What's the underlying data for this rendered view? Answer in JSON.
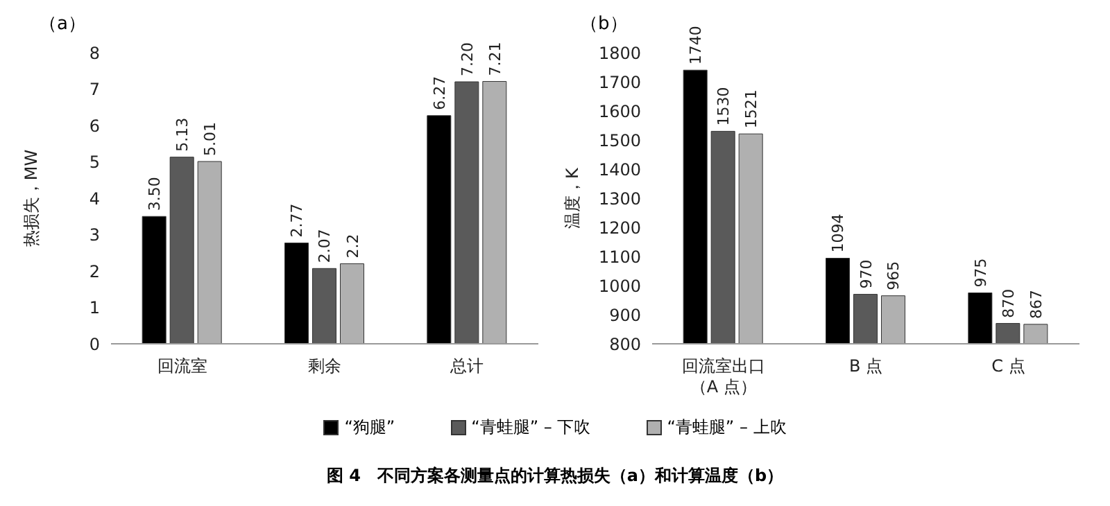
{
  "chart_data": [
    {
      "type": "bar",
      "title": "（a）",
      "ylabel": "热损失，MW",
      "categories": [
        "回流室",
        "剩余",
        "总计"
      ],
      "series": [
        {
          "name": "“狗腿”",
          "color": "#000000",
          "values": [
            3.5,
            2.77,
            6.27
          ],
          "value_labels": [
            "3.50",
            "2.77",
            "6.27"
          ]
        },
        {
          "name": "“青蛙腿” – 下吹",
          "color": "#5a5a5a",
          "values": [
            5.13,
            2.07,
            7.2
          ],
          "value_labels": [
            "5.13",
            "2.07",
            "7.20"
          ]
        },
        {
          "name": "“青蛙腿” – 上吹",
          "color": "#b0b0b0",
          "values": [
            5.01,
            2.2,
            7.21
          ],
          "value_labels": [
            "5.01",
            "2.2",
            "7.21"
          ]
        }
      ],
      "ylim": [
        0,
        8
      ],
      "yticks": [
        0,
        1,
        2,
        3,
        4,
        5,
        6,
        7,
        8
      ],
      "grid": false,
      "legend": "bottom",
      "annotations": [
        "图 4　不同方案各测量点的计算热损失（a）和计算温度（b）"
      ]
    },
    {
      "type": "bar",
      "title": "（b）",
      "ylabel": "温度，K",
      "categories": [
        "回流室出口（A 点）",
        "B 点",
        "C 点"
      ],
      "series": [
        {
          "color": "#000000",
          "values": [
            1740,
            1094,
            975
          ]
        },
        {
          "color": "#5a5a5a",
          "values": [
            1530,
            970,
            870
          ]
        },
        {
          "color": "#b0b0b0",
          "values": [
            1521,
            965,
            867
          ]
        }
      ],
      "ylim": [
        800,
        1800
      ],
      "yticks": [
        800,
        900,
        1000,
        1100,
        1200,
        1300,
        1400,
        1500,
        1600,
        1700,
        1800
      ],
      "grid": false,
      "data_labels": true
    }
  ]
}
